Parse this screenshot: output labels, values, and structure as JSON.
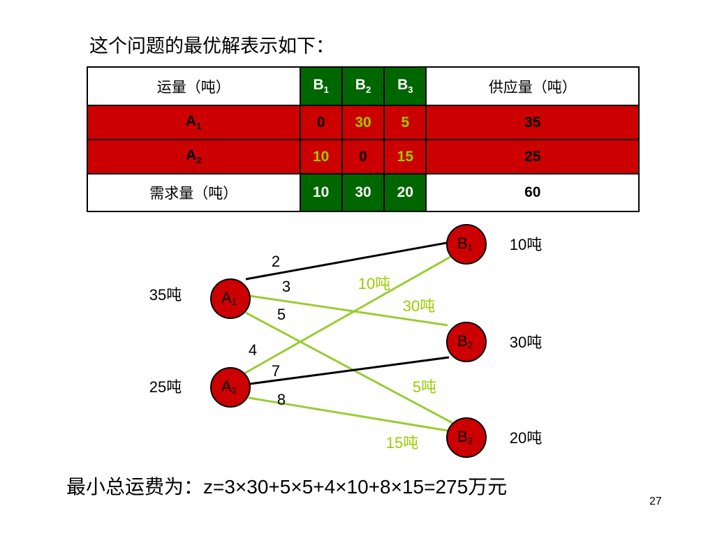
{
  "title": "这个问题的最优解表示如下：",
  "table": {
    "header": [
      "运量（吨）",
      {
        "base": "B",
        "sub": "1"
      },
      {
        "base": "B",
        "sub": "2"
      },
      {
        "base": "B",
        "sub": "3"
      },
      "供应量（吨）"
    ],
    "rows": [
      {
        "label": {
          "base": "A",
          "sub": "1"
        },
        "values": [
          0,
          30,
          5
        ],
        "supply": 35
      },
      {
        "label": {
          "base": "A",
          "sub": "2"
        },
        "values": [
          10,
          0,
          15
        ],
        "supply": 25
      }
    ],
    "demand": {
      "label": "需求量（吨）",
      "values": [
        10,
        30,
        20
      ],
      "total": 60
    }
  },
  "diagram": {
    "nodes": [
      {
        "base": "A",
        "sub": "1",
        "amount": "35吨"
      },
      {
        "base": "A",
        "sub": "2",
        "amount": "25吨"
      },
      {
        "base": "B",
        "sub": "1",
        "amount": "10吨"
      },
      {
        "base": "B",
        "sub": "2",
        "amount": "30吨"
      },
      {
        "base": "B",
        "sub": "3",
        "amount": "20吨"
      }
    ],
    "costs": [
      2,
      3,
      5,
      4,
      7,
      8
    ],
    "flows": [
      "10吨",
      "30吨",
      "5吨",
      "15吨"
    ]
  },
  "formula": "最小总运费为：z=3×30+5×5+4×10+8×15=275万元",
  "page_number": 27
}
